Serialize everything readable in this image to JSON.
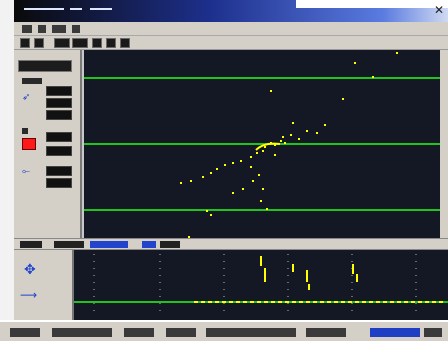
{
  "window": {
    "title": ""
  },
  "colors": {
    "plot_background": "#141824",
    "trace_line": "#1fc41f",
    "data_point": "#ffff00",
    "alert_swatch": "#ff1a1a",
    "window_face": "#d4d0c8",
    "titlebar_start": "#0a0a0a",
    "titlebar_end": "#5a7be0"
  },
  "icons": {
    "close": "close-icon",
    "cursor": "cursor-icon",
    "arrow": "arrow-right-icon"
  },
  "toolbar": {
    "button_count": 9
  },
  "panel": {
    "rows": 6
  },
  "lower_plot": {
    "dotted_markers": 6
  },
  "main_plot": {
    "type": "scatter",
    "horizontal_lines": 3
  }
}
